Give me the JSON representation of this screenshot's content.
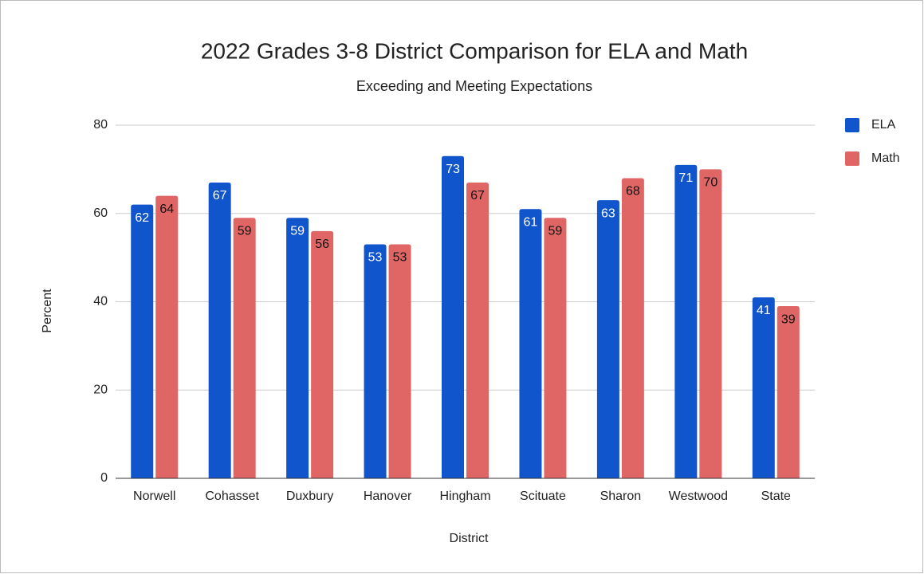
{
  "chart_data": {
    "type": "bar",
    "title": "2022 Grades 3-8 District Comparison for ELA and Math",
    "subtitle": "Exceeding and Meeting Expectations",
    "x_label": "District",
    "y_label": "Percent",
    "categories": [
      "Norwell",
      "Cohasset",
      "Duxbury",
      "Hanover",
      "Hingham",
      "Scituate",
      "Sharon",
      "Westwood",
      "State"
    ],
    "series": [
      {
        "name": "ELA",
        "color": "#1155cc",
        "values": [
          62,
          67,
          59,
          53,
          73,
          61,
          63,
          71,
          41
        ]
      },
      {
        "name": "Math",
        "color": "#e06666",
        "values": [
          64,
          59,
          56,
          53,
          67,
          59,
          68,
          70,
          39
        ]
      }
    ],
    "ylim": [
      0,
      80
    ],
    "yticks": [
      0,
      20,
      40,
      60,
      80
    ],
    "grid": true,
    "legend": "right"
  }
}
